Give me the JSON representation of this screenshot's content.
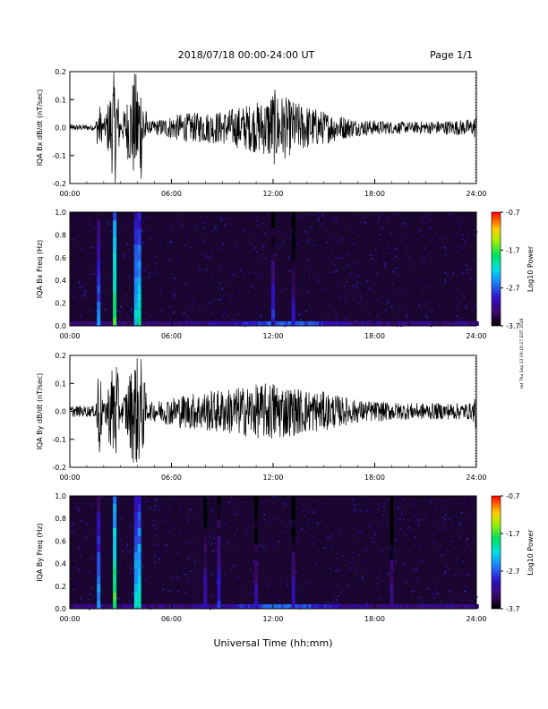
{
  "header": {
    "title": "2018/07/18   00:00-24:00 UT",
    "page": "Page 1/1"
  },
  "footer": {
    "xlabel": "Universal Time (hh:mm)",
    "side_note": "sat Thu Sep 13 09:19:27 EDT 2018"
  },
  "chart_data": [
    {
      "type": "line",
      "panel": "bx-waveform",
      "ylabel": "IQA Bx dB/dt (nT/sec)",
      "xlim": [
        0,
        24
      ],
      "ylim": [
        -0.2,
        0.2
      ],
      "xticks": [
        "00:00",
        "06:00",
        "12:00",
        "18:00",
        "24:00"
      ],
      "yticks": [
        "-0.2",
        "-0.1",
        "0.0",
        "0.1",
        "0.2"
      ],
      "series": [
        {
          "envelope": [
            {
              "x": 0.0,
              "amp": 0.012
            },
            {
              "x": 1.5,
              "amp": 0.01
            },
            {
              "x": 1.7,
              "amp": 0.1
            },
            {
              "x": 2.0,
              "amp": 0.02
            },
            {
              "x": 2.6,
              "amp": 0.2
            },
            {
              "x": 2.75,
              "amp": 0.2
            },
            {
              "x": 3.0,
              "amp": 0.02
            },
            {
              "x": 3.8,
              "amp": 0.2
            },
            {
              "x": 4.2,
              "amp": 0.2
            },
            {
              "x": 4.6,
              "amp": 0.02
            },
            {
              "x": 6.5,
              "amp": 0.05
            },
            {
              "x": 9.0,
              "amp": 0.06
            },
            {
              "x": 11.5,
              "amp": 0.1
            },
            {
              "x": 12.0,
              "amp": 0.14
            },
            {
              "x": 13.0,
              "amp": 0.1
            },
            {
              "x": 15.0,
              "amp": 0.06
            },
            {
              "x": 17.0,
              "amp": 0.03
            },
            {
              "x": 20.0,
              "amp": 0.02
            },
            {
              "x": 23.8,
              "amp": 0.03
            },
            {
              "x": 24.0,
              "amp": 0.05
            }
          ]
        }
      ]
    },
    {
      "type": "heatmap",
      "panel": "bx-spectrogram",
      "ylabel": "IQA Bx Freq (Hz)",
      "xlim": [
        0,
        24
      ],
      "ylim": [
        0,
        1.0
      ],
      "xticks": [
        "00:00",
        "06:00",
        "12:00",
        "18:00",
        "24:00"
      ],
      "yticks": [
        "0.0",
        "0.2",
        "0.4",
        "0.6",
        "0.8",
        "1.0"
      ],
      "colorbar": {
        "label": "Log10 Power",
        "range": [
          -3.7,
          -0.7
        ],
        "ticks": [
          "-0.7",
          "-1.7",
          "-2.7",
          "-3.7"
        ]
      },
      "bursts": [
        {
          "x": 1.7,
          "power": -2.5
        },
        {
          "x": 2.65,
          "power": -1.7
        },
        {
          "x": 3.9,
          "power": -2.2
        },
        {
          "x": 4.1,
          "power": -2.0
        },
        {
          "x": 12.0,
          "power": -2.8
        },
        {
          "x": 13.2,
          "power": -3.0
        }
      ]
    },
    {
      "type": "line",
      "panel": "by-waveform",
      "ylabel": "IQA By dB/dt (nT/sec)",
      "xlim": [
        0,
        24
      ],
      "ylim": [
        -0.2,
        0.2
      ],
      "xticks": [
        "00:00",
        "06:00",
        "12:00",
        "18:00",
        "24:00"
      ],
      "yticks": [
        "-0.2",
        "-0.1",
        "0.0",
        "0.1",
        "0.2"
      ],
      "series": [
        {
          "envelope": [
            {
              "x": 0.0,
              "amp": 0.02
            },
            {
              "x": 1.5,
              "amp": 0.02
            },
            {
              "x": 1.7,
              "amp": 0.2
            },
            {
              "x": 2.0,
              "amp": 0.02
            },
            {
              "x": 2.6,
              "amp": 0.2
            },
            {
              "x": 2.75,
              "amp": 0.2
            },
            {
              "x": 3.0,
              "amp": 0.02
            },
            {
              "x": 3.8,
              "amp": 0.2
            },
            {
              "x": 4.2,
              "amp": 0.2
            },
            {
              "x": 4.6,
              "amp": 0.03
            },
            {
              "x": 6.5,
              "amp": 0.06
            },
            {
              "x": 9.0,
              "amp": 0.08
            },
            {
              "x": 11.5,
              "amp": 0.1
            },
            {
              "x": 12.0,
              "amp": 0.11
            },
            {
              "x": 13.0,
              "amp": 0.09
            },
            {
              "x": 15.0,
              "amp": 0.07
            },
            {
              "x": 17.0,
              "amp": 0.04
            },
            {
              "x": 20.0,
              "amp": 0.03
            },
            {
              "x": 23.8,
              "amp": 0.03
            },
            {
              "x": 24.0,
              "amp": 0.1
            }
          ]
        }
      ]
    },
    {
      "type": "heatmap",
      "panel": "by-spectrogram",
      "ylabel": "IQA By Freq (Hz)",
      "xlim": [
        0,
        24
      ],
      "ylim": [
        0,
        1.0
      ],
      "xticks": [
        "00:00",
        "06:00",
        "12:00",
        "18:00",
        "24:00"
      ],
      "yticks": [
        "0.0",
        "0.2",
        "0.4",
        "0.6",
        "0.8",
        "1.0"
      ],
      "colorbar": {
        "label": "Log10 Power",
        "range": [
          -3.7,
          -0.7
        ],
        "ticks": [
          "-0.7",
          "-1.7",
          "-2.7",
          "-3.7"
        ]
      },
      "bursts": [
        {
          "x": 1.7,
          "power": -2.4
        },
        {
          "x": 2.65,
          "power": -1.7
        },
        {
          "x": 3.9,
          "power": -2.2
        },
        {
          "x": 4.1,
          "power": -2.0
        },
        {
          "x": 8.0,
          "power": -3.0
        },
        {
          "x": 8.8,
          "power": -2.8
        },
        {
          "x": 11.0,
          "power": -3.0
        },
        {
          "x": 13.2,
          "power": -3.0
        },
        {
          "x": 19.0,
          "power": -3.1
        }
      ]
    }
  ]
}
